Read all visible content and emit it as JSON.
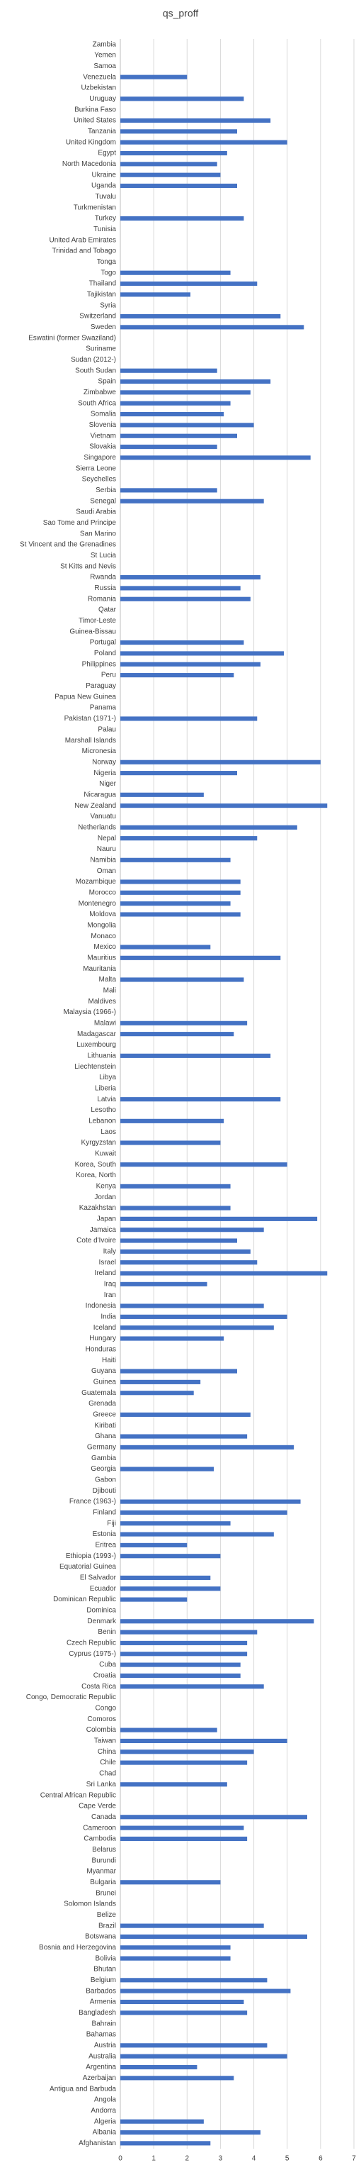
{
  "chart_data": {
    "type": "barh",
    "title": "qs_proff",
    "color": "#4472c4",
    "grid": true,
    "xlim": [
      0,
      7
    ],
    "xticks": [
      0,
      1,
      2,
      3,
      4,
      5,
      6,
      7
    ],
    "categories": [
      "Zambia",
      "Yemen",
      "Samoa",
      "Venezuela",
      "Uzbekistan",
      "Uruguay",
      "Burkina Faso",
      "United States",
      "Tanzania",
      "United Kingdom",
      "Egypt",
      "North Macedonia",
      "Ukraine",
      "Uganda",
      "Tuvalu",
      "Turkmenistan",
      "Turkey",
      "Tunisia",
      "United Arab Emirates",
      "Trinidad and Tobago",
      "Tonga",
      "Togo",
      "Thailand",
      "Tajikistan",
      "Syria",
      "Switzerland",
      "Sweden",
      "Eswatini (former Swaziland)",
      "Suriname",
      "Sudan (2012-)",
      "South Sudan",
      "Spain",
      "Zimbabwe",
      "South Africa",
      "Somalia",
      "Slovenia",
      "Vietnam",
      "Slovakia",
      "Singapore",
      "Sierra Leone",
      "Seychelles",
      "Serbia",
      "Senegal",
      "Saudi Arabia",
      "Sao Tome and Principe",
      "San Marino",
      "St Vincent and the Grenadines",
      "St Lucia",
      "St Kitts and Nevis",
      "Rwanda",
      "Russia",
      "Romania",
      "Qatar",
      "Timor-Leste",
      "Guinea-Bissau",
      "Portugal",
      "Poland",
      "Philippines",
      "Peru",
      "Paraguay",
      "Papua New Guinea",
      "Panama",
      "Pakistan (1971-)",
      "Palau",
      "Marshall Islands",
      "Micronesia",
      "Norway",
      "Nigeria",
      "Niger",
      "Nicaragua",
      "New Zealand",
      "Vanuatu",
      "Netherlands",
      "Nepal",
      "Nauru",
      "Namibia",
      "Oman",
      "Mozambique",
      "Morocco",
      "Montenegro",
      "Moldova",
      "Mongolia",
      "Monaco",
      "Mexico",
      "Mauritius",
      "Mauritania",
      "Malta",
      "Mali",
      "Maldives",
      "Malaysia (1966-)",
      "Malawi",
      "Madagascar",
      "Luxembourg",
      "Lithuania",
      "Liechtenstein",
      "Libya",
      "Liberia",
      "Latvia",
      "Lesotho",
      "Lebanon",
      "Laos",
      "Kyrgyzstan",
      "Kuwait",
      "Korea, South",
      "Korea, North",
      "Kenya",
      "Jordan",
      "Kazakhstan",
      "Japan",
      "Jamaica",
      "Cote d'Ivoire",
      "Italy",
      "Israel",
      "Ireland",
      "Iraq",
      "Iran",
      "Indonesia",
      "India",
      "Iceland",
      "Hungary",
      "Honduras",
      "Haiti",
      "Guyana",
      "Guinea",
      "Guatemala",
      "Grenada",
      "Greece",
      "Kiribati",
      "Ghana",
      "Germany",
      "Gambia",
      "Georgia",
      "Gabon",
      "Djibouti",
      "France (1963-)",
      "Finland",
      "Fiji",
      "Estonia",
      "Eritrea",
      "Ethiopia (1993-)",
      "Equatorial Guinea",
      "El Salvador",
      "Ecuador",
      "Dominican Republic",
      "Dominica",
      "Denmark",
      "Benin",
      "Czech Republic",
      "Cyprus (1975-)",
      "Cuba",
      "Croatia",
      "Costa Rica",
      "Congo, Democratic Republic",
      "Congo",
      "Comoros",
      "Colombia",
      "Taiwan",
      "China",
      "Chile",
      "Chad",
      "Sri Lanka",
      "Central African Republic",
      "Cape Verde",
      "Canada",
      "Cameroon",
      "Cambodia",
      "Belarus",
      "Burundi",
      "Myanmar",
      "Bulgaria",
      "Brunei",
      "Solomon Islands",
      "Belize",
      "Brazil",
      "Botswana",
      "Bosnia and Herzegovina",
      "Bolivia",
      "Bhutan",
      "Belgium",
      "Barbados",
      "Armenia",
      "Bangladesh",
      "Bahrain",
      "Bahamas",
      "Austria",
      "Australia",
      "Argentina",
      "Azerbaijan",
      "Antigua and Barbuda",
      "Angola",
      "Andorra",
      "Algeria",
      "Albania",
      "Afghanistan"
    ],
    "values": [
      null,
      null,
      null,
      2.0,
      null,
      3.7,
      null,
      4.5,
      3.5,
      5.0,
      3.2,
      2.9,
      3.0,
      3.5,
      null,
      null,
      3.7,
      null,
      null,
      null,
      null,
      3.3,
      4.1,
      2.1,
      null,
      4.8,
      5.5,
      null,
      null,
      null,
      2.9,
      4.5,
      3.9,
      3.3,
      3.1,
      4.0,
      3.5,
      2.9,
      5.7,
      null,
      null,
      2.9,
      4.3,
      null,
      null,
      null,
      null,
      null,
      null,
      4.2,
      3.6,
      3.9,
      null,
      null,
      null,
      3.7,
      4.9,
      4.2,
      3.4,
      null,
      null,
      null,
      4.1,
      null,
      null,
      null,
      6.0,
      3.5,
      null,
      2.5,
      6.2,
      null,
      5.3,
      4.1,
      null,
      3.3,
      null,
      3.6,
      3.6,
      3.3,
      3.6,
      null,
      null,
      2.7,
      4.8,
      null,
      3.7,
      null,
      null,
      null,
      3.8,
      3.4,
      null,
      4.5,
      null,
      null,
      null,
      4.8,
      null,
      3.1,
      null,
      3.0,
      null,
      5.0,
      null,
      3.3,
      null,
      3.3,
      5.9,
      4.3,
      3.5,
      3.9,
      4.1,
      6.2,
      2.6,
      null,
      4.3,
      5.0,
      4.6,
      3.1,
      null,
      null,
      3.5,
      2.4,
      2.2,
      null,
      3.9,
      null,
      3.8,
      5.2,
      null,
      2.8,
      null,
      null,
      5.4,
      5.0,
      3.3,
      4.6,
      2.0,
      3.0,
      null,
      2.7,
      3.0,
      2.0,
      null,
      5.8,
      4.1,
      3.8,
      3.8,
      3.6,
      3.6,
      4.3,
      null,
      null,
      null,
      2.9,
      5.0,
      4.0,
      3.8,
      null,
      3.2,
      null,
      null,
      5.6,
      3.7,
      3.8,
      null,
      null,
      null,
      3.0,
      null,
      null,
      null,
      4.3,
      5.6,
      3.3,
      3.3,
      null,
      4.4,
      5.1,
      3.7,
      3.8,
      null,
      null,
      4.4,
      5.0,
      2.3,
      3.4,
      null,
      null,
      null,
      2.5,
      4.2,
      2.7
    ]
  }
}
